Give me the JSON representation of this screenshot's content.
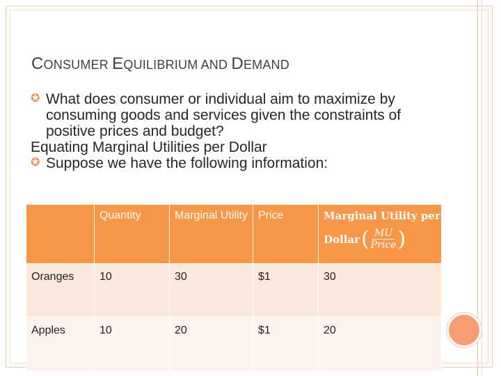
{
  "title": {
    "first": "C",
    "rest1": "ONSUMER ",
    "second": "E",
    "rest2": "QUILIBRIUM AND ",
    "third": "D",
    "rest3": "EMAND"
  },
  "bullets": [
    "What does consumer or individual aim to maximize by consuming goods and services given the constraints of positive prices and budget?",
    "Equating Marginal Utilities per Dollar",
    "Suppose we have the following information:"
  ],
  "table": {
    "headers": [
      "",
      "Quantity",
      "Marginal Utility",
      "Price"
    ],
    "mu_header": {
      "line1": "Marginal Utility per",
      "line2": "Dollar",
      "numerator": "MU",
      "denominator": "Price"
    },
    "rows": [
      [
        "Oranges",
        "10",
        "30",
        "$1",
        "30"
      ],
      [
        "Apples",
        "10",
        "20",
        "$1",
        "20"
      ]
    ]
  },
  "colors": {
    "accent": "#f79646",
    "bullet": "#f28b4f",
    "circle": "#f79c73"
  }
}
